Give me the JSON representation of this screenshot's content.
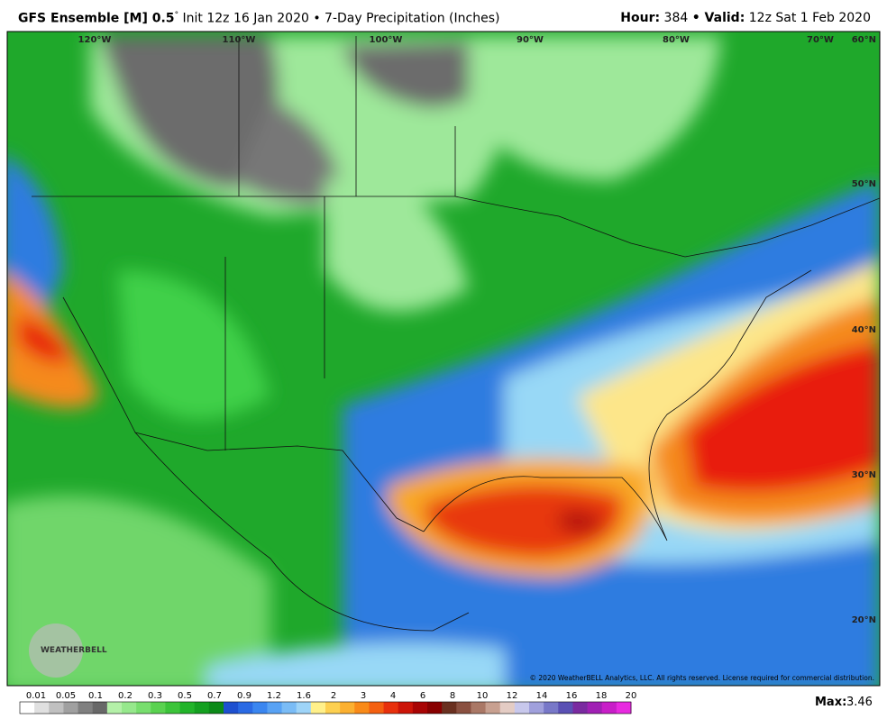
{
  "header": {
    "model": "GFS Ensemble [M] 0.5",
    "degree": "°",
    "subtitle": "Init 12z 16 Jan 2020 • 7-Day Precipitation (Inches)",
    "hour_label": "Hour:",
    "hour": "384",
    "valid_label": "• Valid:",
    "valid": "12z Sat 1 Feb 2020"
  },
  "map": {
    "lon_labels": [
      "120°W",
      "110°W",
      "100°W",
      "90°W",
      "80°W",
      "70°W"
    ],
    "lat_labels": [
      "60°N",
      "50°N",
      "40°N",
      "30°N",
      "20°N"
    ],
    "copyright": "© 2020 WeatherBELL Analytics, LLC. All rights reserved. License required for commercial distribution.",
    "logo": "WEATHERBELL"
  },
  "legend": {
    "labels": [
      "0.01",
      "0.05",
      "0.1",
      "0.2",
      "0.3",
      "0.5",
      "0.7",
      "0.9",
      "1.2",
      "1.6",
      "2",
      "3",
      "4",
      "6",
      "8",
      "10",
      "12",
      "14",
      "16",
      "18",
      "20"
    ],
    "max_label": "Max:",
    "max": "3.46"
  }
}
